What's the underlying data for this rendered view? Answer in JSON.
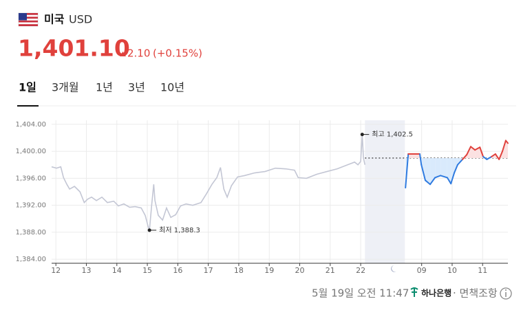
{
  "header": {
    "country": "미국",
    "currency": "USD",
    "price": "1,401.10",
    "change": "2.10",
    "change_percent": "(+0.15%)"
  },
  "tabs": [
    "1일",
    "3개월",
    "1년",
    "3년",
    "10년"
  ],
  "footer": {
    "timestamp": "5월 19일 오전 11:47",
    "bank": "하나은행",
    "disclaimer": "· 면책조항"
  },
  "chart_data": {
    "type": "line",
    "xlim": [
      -0.14,
      14.83
    ],
    "ylim": [
      1383.4,
      1404.6
    ],
    "xticks": [
      {
        "value": 0,
        "label": "12"
      },
      {
        "value": 1,
        "label": "13"
      },
      {
        "value": 2,
        "label": "14"
      },
      {
        "value": 3,
        "label": "15"
      },
      {
        "value": 4,
        "label": "16"
      },
      {
        "value": 5,
        "label": "17"
      },
      {
        "value": 6,
        "label": "18"
      },
      {
        "value": 7,
        "label": "19"
      },
      {
        "value": 8,
        "label": "20"
      },
      {
        "value": 9,
        "label": "21"
      },
      {
        "value": 10,
        "label": "22"
      },
      {
        "value": 12,
        "label": "09"
      },
      {
        "value": 13,
        "label": "10"
      },
      {
        "value": 14,
        "label": "11"
      }
    ],
    "yticks": [
      {
        "value": 1384,
        "label": "1,384.00"
      },
      {
        "value": 1388,
        "label": "1,388.00"
      },
      {
        "value": 1392,
        "label": "1,392.00"
      },
      {
        "value": 1396,
        "label": "1,396.00"
      },
      {
        "value": 1400,
        "label": "1,400.00"
      },
      {
        "value": 1404,
        "label": "1,404.00"
      }
    ],
    "grid": true,
    "reference_value": 1399.0,
    "shaded_xrange": [
      10.14,
      11.45
    ],
    "shade_color": "#eef0f6",
    "series": [
      {
        "color": "#c3c6d4",
        "x": [
          -0.14,
          0.02,
          0.16,
          0.25,
          0.36,
          0.45,
          0.61,
          0.79,
          0.93,
          1.04,
          1.17,
          1.33,
          1.51,
          1.69,
          1.9,
          2.05,
          2.23,
          2.42,
          2.6,
          2.8,
          2.93,
          3.03,
          3.07,
          3.14,
          3.21,
          3.25,
          3.36,
          3.5,
          3.63,
          3.77,
          3.93,
          4.09,
          4.27,
          4.49,
          4.76,
          4.94,
          5.12,
          5.28,
          5.4,
          5.51,
          5.62,
          5.76,
          5.96,
          6.19,
          6.52,
          6.86,
          7.2,
          7.54,
          7.83,
          7.95,
          8.22,
          8.56,
          8.89,
          9.23,
          9.57,
          9.8,
          9.91,
          10.0,
          10.05,
          10.09,
          10.14
        ],
        "values": [
          1397.7,
          1397.5,
          1397.7,
          1396.1,
          1395.1,
          1394.4,
          1394.8,
          1394.0,
          1392.4,
          1392.9,
          1393.2,
          1392.7,
          1393.2,
          1392.4,
          1392.6,
          1391.9,
          1392.2,
          1391.7,
          1391.8,
          1391.6,
          1390.5,
          1388.8,
          1388.3,
          1391.9,
          1395.1,
          1392.7,
          1390.5,
          1389.8,
          1391.6,
          1390.2,
          1390.6,
          1391.9,
          1392.2,
          1392.0,
          1392.4,
          1393.7,
          1395.1,
          1396.1,
          1397.6,
          1394.4,
          1393.2,
          1394.9,
          1396.2,
          1396.4,
          1396.8,
          1397.0,
          1397.5,
          1397.4,
          1397.2,
          1396.1,
          1396.0,
          1396.6,
          1397.0,
          1397.4,
          1398.0,
          1398.4,
          1398.0,
          1398.5,
          1402.5,
          1399.0,
          1398.0
        ]
      },
      {
        "color_above": "#e0413c",
        "color_below": "#2f7be0",
        "fill_above": "#fbe1e1",
        "fill_below": "#d9eafc",
        "x": [
          11.47,
          11.56,
          11.94,
          11.99,
          12.12,
          12.28,
          12.44,
          12.62,
          12.84,
          12.96,
          13.07,
          13.18,
          13.34,
          13.48,
          13.61,
          13.75,
          13.91,
          14.02,
          14.14,
          14.29,
          14.42,
          14.54,
          14.65,
          14.76,
          14.83
        ],
        "values": [
          1394.6,
          1399.6,
          1399.6,
          1398.0,
          1395.7,
          1395.1,
          1396.1,
          1396.4,
          1396.1,
          1395.2,
          1396.8,
          1398.0,
          1398.8,
          1399.5,
          1400.7,
          1400.2,
          1400.6,
          1399.2,
          1398.8,
          1399.2,
          1399.6,
          1398.8,
          1400.0,
          1401.6,
          1401.2
        ]
      }
    ],
    "annotations": [
      {
        "text": "최고 1,402.5",
        "x": 10.05,
        "y": 1402.5
      },
      {
        "text": "최저 1,388.3",
        "x": 3.07,
        "y": 1388.3
      }
    ]
  }
}
